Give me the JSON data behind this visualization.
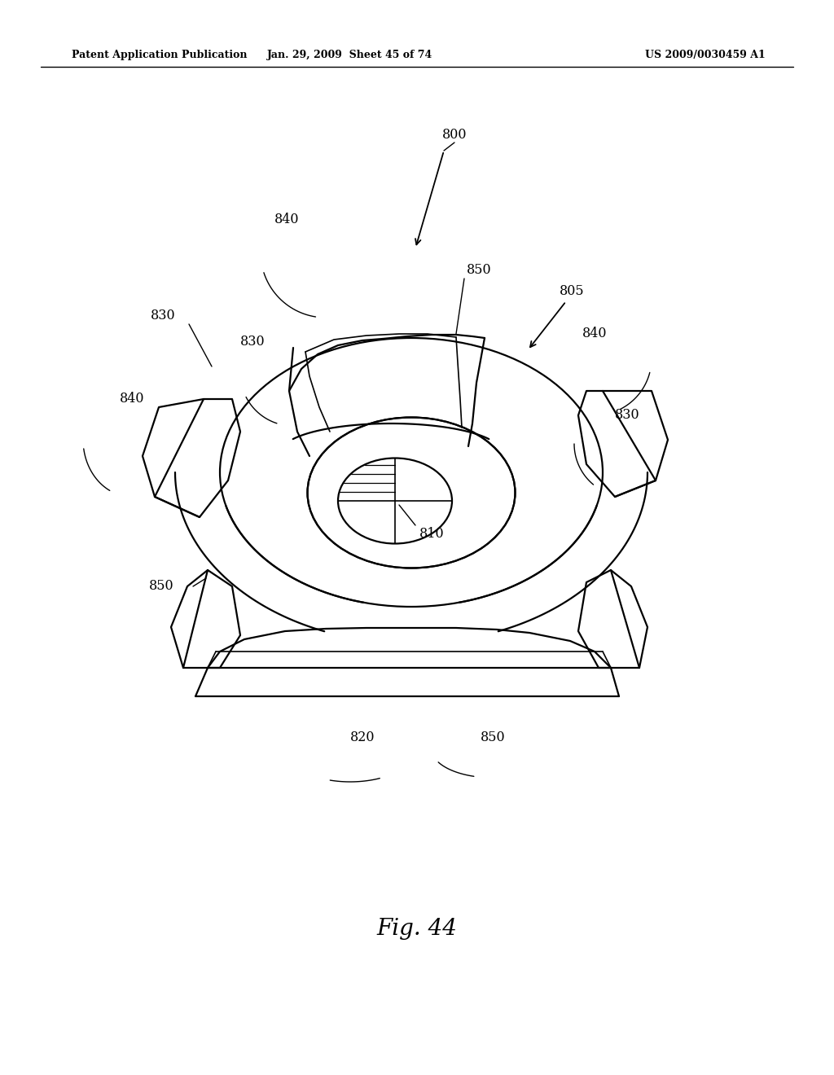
{
  "header_left": "Patent Application Publication",
  "header_mid": "Jan. 29, 2009  Sheet 45 of 74",
  "header_right": "US 2009/0030459 A1",
  "figure_label": "Fig. 44",
  "background_color": "#ffffff",
  "line_color": "#000000"
}
